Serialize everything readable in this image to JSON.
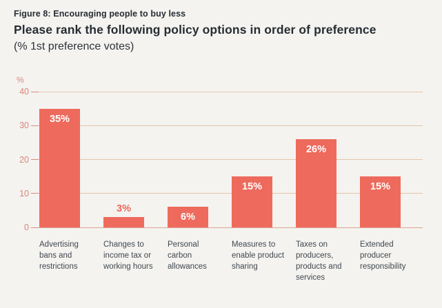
{
  "header": {
    "figure_label": "Figure 8: Encouraging people to buy less",
    "title": "Please rank the following policy options in order of preference",
    "subtitle": "(% 1st preference votes)"
  },
  "chart_data": {
    "type": "bar",
    "title": "Please rank the following policy options in order of preference",
    "subtitle": "(% 1st preference votes)",
    "figure_label": "Figure 8: Encouraging people to buy less",
    "categories": [
      "Advertising bans and restrictions",
      "Changes to income tax or working hours",
      "Personal carbon allowances",
      "Measures to enable product sharing",
      "Taxes on producers, products and services",
      "Extended producer responsibility"
    ],
    "category_lines": [
      [
        "Advertising",
        "bans and",
        "restrictions"
      ],
      [
        "Changes to",
        "income tax or",
        "working hours"
      ],
      [
        "Personal",
        "carbon",
        "allowances"
      ],
      [
        "Measures to",
        "enable product",
        "sharing"
      ],
      [
        "Taxes on",
        "producers,",
        "products and",
        "services"
      ],
      [
        "Extended",
        "producer",
        "responsibility"
      ]
    ],
    "values": [
      35,
      3,
      6,
      15,
      26,
      15
    ],
    "value_labels": [
      "35%",
      "3%",
      "6%",
      "15%",
      "26%",
      "15%"
    ],
    "xlabel": "",
    "ylabel": "%",
    "yticks": [
      0,
      10,
      20,
      30,
      40
    ],
    "ylim": [
      0,
      40
    ],
    "grid": true,
    "legend": false
  },
  "style": {
    "bar_color": "#ed6a5c",
    "grid_color": "#e2c5a9",
    "baseline_color": "#dfa28f",
    "axis_text_color": "#db8478",
    "value_label_inside_color": "#ffffff",
    "value_label_outside_color": "#ea6a5b",
    "title_color": "#262d33",
    "x_label_color": "#40474d",
    "background_color": "#f4f3f0"
  }
}
